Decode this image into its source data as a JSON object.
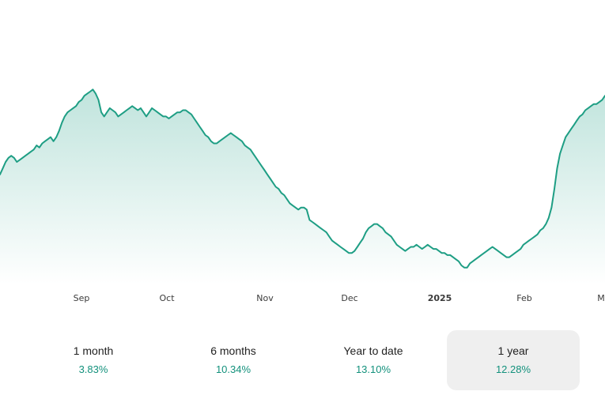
{
  "chart_data": {
    "type": "area",
    "x_ticks": [
      "Sep",
      "Oct",
      "Nov",
      "Dec",
      "2025",
      "Feb",
      "M"
    ],
    "y": [
      52,
      55,
      58,
      60,
      61,
      60,
      58,
      59,
      60,
      61,
      62,
      63,
      64,
      66,
      65,
      67,
      68,
      69,
      70,
      68,
      70,
      73,
      77,
      80,
      82,
      83,
      84,
      85,
      87,
      88,
      90,
      91,
      92,
      93,
      91,
      88,
      82,
      80,
      82,
      84,
      83,
      82,
      80,
      81,
      82,
      83,
      84,
      85,
      84,
      83,
      84,
      82,
      80,
      82,
      84,
      83,
      82,
      81,
      80,
      80,
      79,
      80,
      81,
      82,
      82,
      83,
      83,
      82,
      81,
      79,
      77,
      75,
      73,
      71,
      70,
      68,
      67,
      67,
      68,
      69,
      70,
      71,
      72,
      71,
      70,
      69,
      68,
      66,
      65,
      64,
      62,
      60,
      58,
      56,
      54,
      52,
      50,
      48,
      46,
      45,
      43,
      42,
      40,
      38,
      37,
      36,
      35,
      36,
      36,
      35,
      30,
      29,
      28,
      27,
      26,
      25,
      24,
      22,
      20,
      19,
      18,
      17,
      16,
      15,
      14,
      14,
      15,
      17,
      19,
      21,
      24,
      26,
      27,
      28,
      28,
      27,
      26,
      24,
      23,
      22,
      20,
      18,
      17,
      16,
      15,
      16,
      17,
      17,
      18,
      17,
      16,
      17,
      18,
      17,
      16,
      16,
      15,
      14,
      14,
      13,
      13,
      12,
      11,
      10,
      8,
      7,
      7,
      9,
      10,
      11,
      12,
      13,
      14,
      15,
      16,
      17,
      16,
      15,
      14,
      13,
      12,
      12,
      13,
      14,
      15,
      16,
      18,
      19,
      20,
      21,
      22,
      23,
      25,
      26,
      28,
      31,
      36,
      45,
      55,
      62,
      66,
      70,
      72,
      74,
      76,
      78,
      80,
      81,
      83,
      84,
      85,
      86,
      86,
      87,
      88,
      90
    ],
    "ylim": [
      0,
      100
    ],
    "line_color": "#1e9e84",
    "fill_color": "#1e9e84"
  },
  "periods": [
    {
      "label": "1 month",
      "value": "3.83%",
      "active": false
    },
    {
      "label": "6 months",
      "value": "10.34%",
      "active": false
    },
    {
      "label": "Year to date",
      "value": "13.10%",
      "active": false
    },
    {
      "label": "1 year",
      "value": "12.28%",
      "active": true
    }
  ]
}
